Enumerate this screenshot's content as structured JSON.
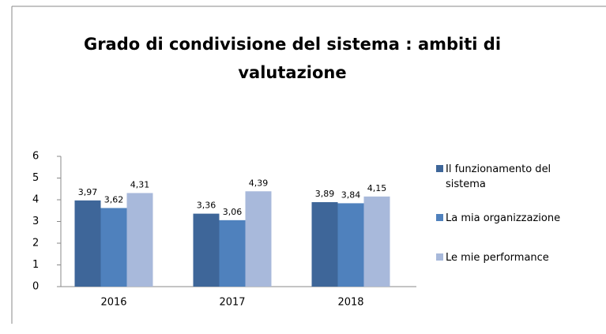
{
  "chart_data": {
    "type": "bar",
    "title": "Grado di condivisione del sistema : ambiti di valutazione",
    "categories": [
      "2016",
      "2017",
      "2018"
    ],
    "series": [
      {
        "name": "Il funzionamento del sistema",
        "color": "#3e6699",
        "values": [
          3.97,
          3.36,
          3.89
        ],
        "value_labels": [
          "3,97",
          "3,36",
          "3,89"
        ]
      },
      {
        "name": "La mia organizzazione",
        "color": "#4f81bd",
        "values": [
          3.62,
          3.06,
          3.84
        ],
        "value_labels": [
          "3,62",
          "3,06",
          "3,84"
        ]
      },
      {
        "name": "Le mie performance",
        "color": "#a8b9db",
        "values": [
          4.31,
          4.39,
          4.15
        ],
        "value_labels": [
          "4,31",
          "4,39",
          "4,15"
        ]
      }
    ],
    "ylim": [
      0,
      6
    ],
    "yticks": [
      0,
      1,
      2,
      3,
      4,
      5,
      6
    ],
    "grid": false,
    "legend": "right"
  }
}
